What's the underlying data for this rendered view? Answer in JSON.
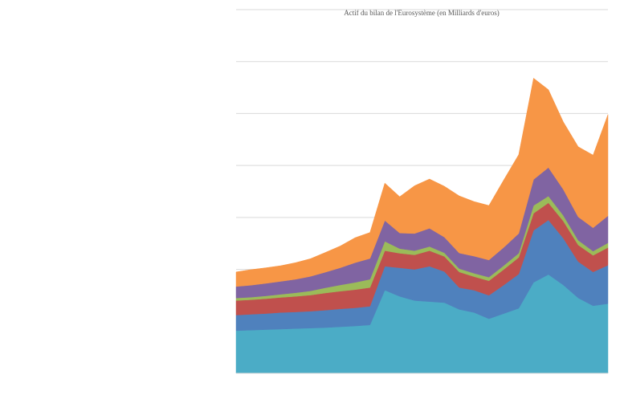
{
  "chart_data": {
    "type": "area",
    "stacked": true,
    "title": "Actif du bilan de l'Eurosystème (en Milliards d'euros)",
    "xlabel": "",
    "ylabel": "",
    "grid": true,
    "legend": "none",
    "ylim": [
      0,
      7000
    ],
    "ytick_step": 1000,
    "x": [
      0,
      4,
      8,
      12,
      16,
      20,
      24,
      28,
      32,
      36,
      40,
      44,
      48,
      52,
      56,
      60,
      64,
      68,
      72,
      76,
      80,
      84,
      88,
      92,
      96,
      100
    ],
    "series": [
      {
        "color": "#4bacc6",
        "values": [
          820,
          830,
          840,
          850,
          860,
          870,
          880,
          895,
          910,
          930,
          1600,
          1480,
          1400,
          1380,
          1360,
          1230,
          1170,
          1050,
          1150,
          1250,
          1750,
          1900,
          1700,
          1450,
          1300,
          1340
        ]
      },
      {
        "color": "#4f81bd",
        "values": [
          300,
          305,
          310,
          320,
          320,
          325,
          335,
          345,
          350,
          360,
          460,
          550,
          600,
          680,
          600,
          420,
          430,
          450,
          550,
          660,
          1000,
          1050,
          900,
          700,
          650,
          740
        ]
      },
      {
        "color": "#c0504d",
        "values": [
          280,
          280,
          285,
          290,
          300,
          310,
          330,
          340,
          350,
          360,
          300,
          280,
          280,
          300,
          290,
          300,
          260,
          280,
          300,
          320,
          330,
          330,
          330,
          320,
          320,
          340
        ]
      },
      {
        "color": "#9bbb59",
        "values": [
          50,
          50,
          55,
          60,
          70,
          80,
          100,
          120,
          140,
          160,
          180,
          90,
          80,
          80,
          70,
          65,
          65,
          70,
          75,
          80,
          150,
          130,
          110,
          90,
          80,
          90
        ]
      },
      {
        "color": "#8064a2",
        "values": [
          220,
          230,
          240,
          250,
          260,
          280,
          300,
          330,
          380,
          400,
          400,
          300,
          330,
          350,
          300,
          300,
          330,
          330,
          350,
          380,
          500,
          550,
          500,
          450,
          450,
          520
        ]
      },
      {
        "color": "#f79646",
        "values": [
          280,
          300,
          300,
          300,
          320,
          340,
          380,
          420,
          480,
          500,
          720,
          700,
          920,
          950,
          980,
          1100,
          1050,
          1050,
          1300,
          1520,
          1950,
          1500,
          1300,
          1350,
          1400,
          1950
        ]
      }
    ]
  }
}
